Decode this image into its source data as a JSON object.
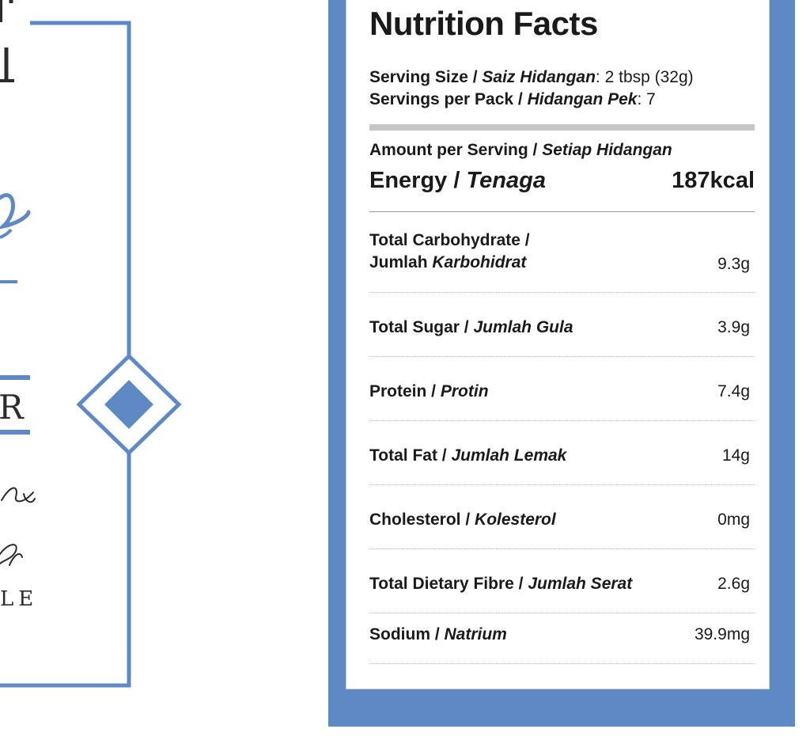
{
  "left_label": {
    "letter": "R",
    "word_fragment": "LE",
    "accent_color": "#5f89c5"
  },
  "nutrition": {
    "title": "Nutrition Facts",
    "serving_size": {
      "label_en": "Serving Size / ",
      "label_ms": "Saiz Hidangan",
      "value": ": 2 tbsp (32g)"
    },
    "servings_per_pack": {
      "label_en": "Servings per Pack / ",
      "label_ms": "Hidangan Pek",
      "value": ": 7"
    },
    "amount_per_serving": {
      "label_en": "Amount per Serving / ",
      "label_ms": "Setiap Hidangan"
    },
    "energy": {
      "label_en": "Energy / ",
      "label_ms": "Tenaga",
      "value": "187kcal"
    },
    "rows": [
      {
        "label_en": "Total Carbohydrate /",
        "label_en2": "Jumlah ",
        "label_ms": "Karbohidrat",
        "value": "9.3g"
      },
      {
        "label_en": "Total Sugar / ",
        "label_ms": "Jumlah Gula",
        "value": "3.9g"
      },
      {
        "label_en": "Protein / ",
        "label_ms": "Protin",
        "value": "7.4g"
      },
      {
        "label_en": "Total Fat / ",
        "label_ms": "Jumlah Lemak",
        "value": "14g"
      },
      {
        "label_en": "Cholesterol / ",
        "label_ms": "Kolesterol",
        "value": "0mg"
      },
      {
        "label_en": "Total Dietary Fibre / ",
        "label_ms": "Jumlah Serat",
        "value": "2.6g"
      },
      {
        "label_en": "Sodium / ",
        "label_ms": "Natrium",
        "value": "39.9mg"
      }
    ],
    "frame_color": "#5f89c5"
  }
}
